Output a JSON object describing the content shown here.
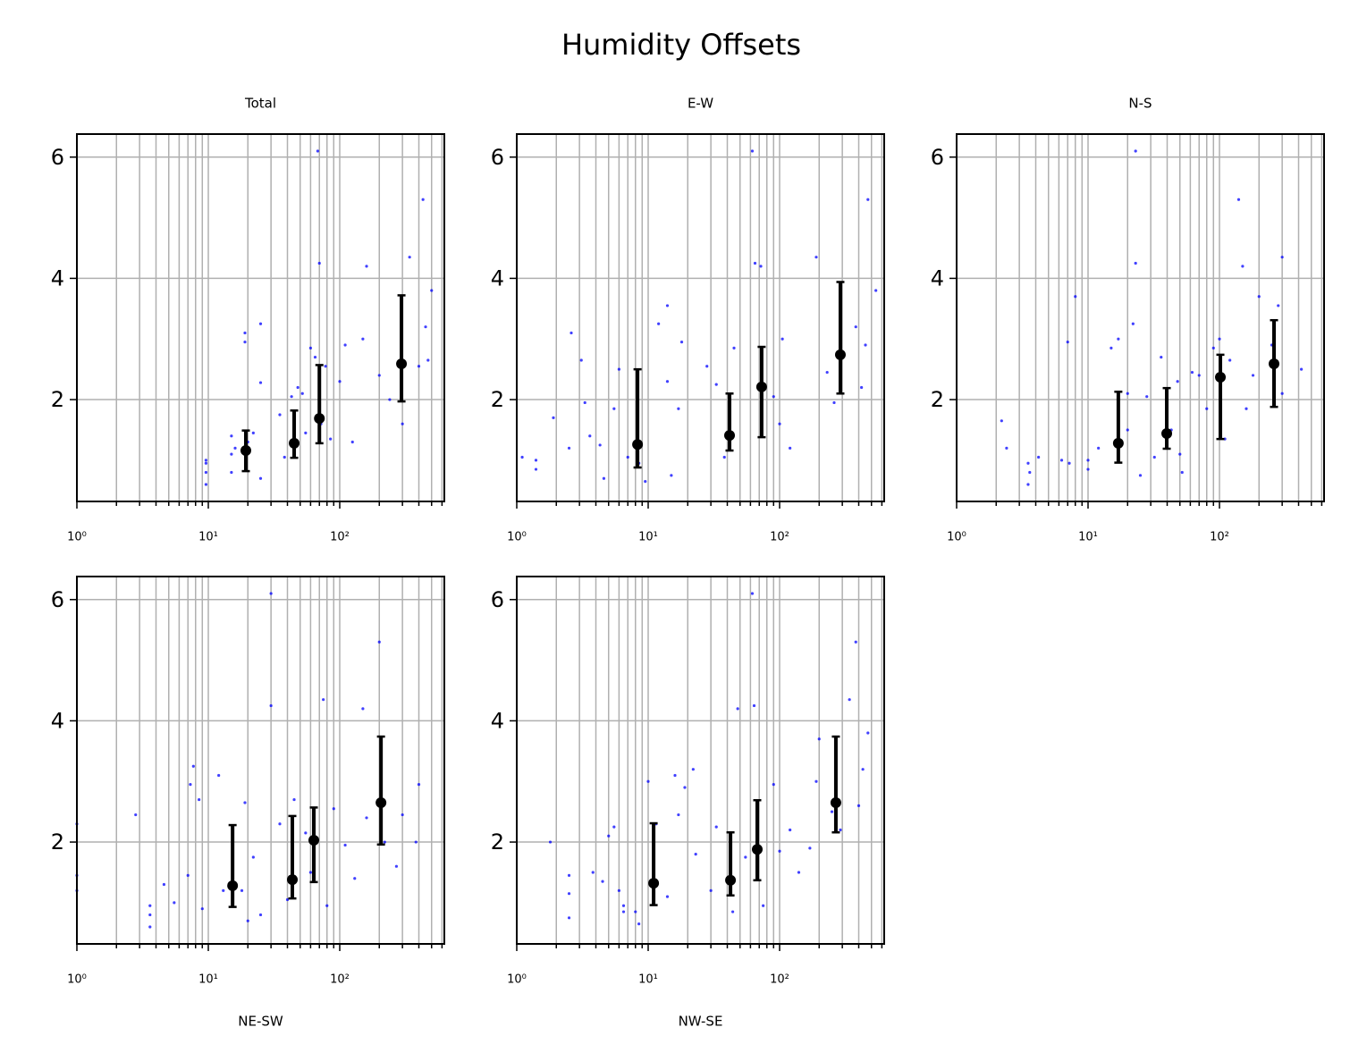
{
  "title": "Humidity Offsets",
  "chart_data": [
    {
      "type": "scatter",
      "title": "Total",
      "xscale": "log",
      "grid": true,
      "xlim": [
        1,
        625
      ],
      "xticks": [
        {
          "value": 1,
          "label": "10⁰"
        },
        {
          "value": 10,
          "label": "10¹"
        },
        {
          "value": 100,
          "label": "10²"
        }
      ],
      "xminorticks": [
        2,
        3,
        4,
        5,
        6,
        7,
        8,
        9,
        20,
        30,
        40,
        50,
        60,
        70,
        80,
        90,
        200,
        300,
        400,
        500,
        600
      ],
      "ylim": [
        0.32,
        6.38
      ],
      "yticks": [
        2,
        4,
        6
      ],
      "series": [
        {
          "color": "#0000ff",
          "x": [
            9.6,
            9.6,
            9.6,
            9.6,
            15,
            15,
            15,
            16,
            19,
            19,
            20,
            22,
            25,
            25,
            25,
            35,
            38,
            43,
            45,
            48,
            52,
            55,
            60,
            65,
            68,
            70,
            72,
            78,
            85,
            100,
            110,
            125,
            150,
            160,
            200,
            240,
            300,
            340,
            400,
            430,
            450,
            500,
            470
          ],
          "values": [
            0.6,
            0.8,
            0.95,
            1.0,
            0.8,
            1.1,
            1.4,
            1.2,
            3.1,
            2.95,
            1.3,
            1.45,
            3.25,
            2.28,
            0.7,
            1.75,
            1.05,
            2.05,
            1.6,
            2.2,
            2.1,
            1.45,
            2.85,
            2.7,
            6.1,
            4.25,
            1.6,
            2.55,
            1.35,
            2.3,
            2.9,
            1.3,
            3.0,
            4.2,
            2.4,
            2.0,
            1.6,
            4.35,
            2.55,
            5.3,
            3.2,
            3.8,
            2.65
          ]
        },
        {
          "color": "#000000",
          "x": [
            19.3,
            45,
            70,
            295
          ],
          "values": [
            1.16,
            1.28,
            1.69,
            2.59
          ],
          "error_low": [
            0.34,
            0.24,
            0.41,
            0.62
          ],
          "error_high": [
            0.33,
            0.54,
            0.88,
            1.13
          ]
        }
      ]
    },
    {
      "type": "scatter",
      "title": "E-W",
      "xscale": "log",
      "grid": true,
      "xlim": [
        1,
        625
      ],
      "xticks": [
        {
          "value": 1,
          "label": "10⁰"
        },
        {
          "value": 10,
          "label": "10¹"
        },
        {
          "value": 100,
          "label": "10²"
        }
      ],
      "xminorticks": [
        2,
        3,
        4,
        5,
        6,
        7,
        8,
        9,
        20,
        30,
        40,
        50,
        60,
        70,
        80,
        90,
        200,
        300,
        400,
        500,
        600
      ],
      "ylim": [
        0.32,
        6.38
      ],
      "yticks": [
        2,
        4,
        6
      ],
      "series": [
        {
          "color": "#0000ff",
          "x": [
            1.1,
            1.4,
            1.4,
            1.9,
            2.5,
            2.6,
            3.1,
            3.3,
            3.6,
            4.3,
            4.6,
            5.5,
            6,
            7,
            8.5,
            9.5,
            12,
            14,
            14,
            15,
            18,
            17,
            28,
            33,
            38,
            42,
            45,
            62,
            65,
            72,
            90,
            100,
            105,
            120,
            190,
            230,
            260,
            380,
            420,
            450,
            470,
            540
          ],
          "values": [
            1.05,
            1.0,
            0.85,
            1.7,
            1.2,
            3.1,
            2.65,
            1.95,
            1.4,
            1.25,
            0.7,
            1.85,
            2.5,
            1.05,
            0.95,
            0.65,
            3.25,
            3.55,
            2.3,
            0.75,
            2.95,
            1.85,
            2.55,
            2.25,
            1.05,
            1.4,
            2.85,
            6.1,
            4.25,
            4.2,
            2.05,
            1.6,
            3.0,
            1.2,
            4.35,
            2.45,
            1.95,
            3.2,
            2.2,
            2.9,
            5.3,
            3.8
          ]
        },
        {
          "color": "#000000",
          "x": [
            8.3,
            41.6,
            73,
            290
          ],
          "values": [
            1.26,
            1.41,
            2.21,
            2.74
          ],
          "error_low": [
            0.38,
            0.25,
            0.83,
            0.64
          ],
          "error_high": [
            1.24,
            0.69,
            0.66,
            1.2
          ]
        }
      ]
    },
    {
      "type": "scatter",
      "title": "N-S",
      "xscale": "log",
      "grid": true,
      "xlim": [
        1,
        625
      ],
      "xticks": [
        {
          "value": 1,
          "label": "10⁰"
        },
        {
          "value": 10,
          "label": "10¹"
        },
        {
          "value": 100,
          "label": "10²"
        }
      ],
      "xminorticks": [
        2,
        3,
        4,
        5,
        6,
        7,
        8,
        9,
        20,
        30,
        40,
        50,
        60,
        70,
        80,
        90,
        200,
        300,
        400,
        500,
        600
      ],
      "ylim": [
        0.32,
        6.38
      ],
      "yticks": [
        2,
        4,
        6
      ],
      "series": [
        {
          "color": "#0000ff",
          "x": [
            2.2,
            2.4,
            3.5,
            3.5,
            3.6,
            4.2,
            6.3,
            7.0,
            7.2,
            8,
            10,
            10,
            12,
            15,
            17,
            20,
            20,
            22,
            23,
            23,
            25,
            28,
            32,
            36,
            43,
            48,
            50,
            52,
            62,
            70,
            80,
            90,
            100,
            110,
            120,
            140,
            150,
            160,
            180,
            200,
            250,
            280,
            300,
            300,
            420
          ],
          "values": [
            1.65,
            1.2,
            0.95,
            0.6,
            0.8,
            1.05,
            1.0,
            2.95,
            0.95,
            3.7,
            1.0,
            0.85,
            1.2,
            2.85,
            3.0,
            1.5,
            2.1,
            3.25,
            6.1,
            4.25,
            0.75,
            2.05,
            1.05,
            2.7,
            1.5,
            2.3,
            1.1,
            0.8,
            2.45,
            2.4,
            1.85,
            2.85,
            3.0,
            1.35,
            2.65,
            5.3,
            4.2,
            1.85,
            2.4,
            3.7,
            2.9,
            3.55,
            4.35,
            2.1,
            2.5
          ]
        },
        {
          "color": "#000000",
          "x": [
            17,
            39.7,
            101.6,
            260
          ],
          "values": [
            1.28,
            1.44,
            2.37,
            2.59
          ],
          "error_low": [
            0.32,
            0.25,
            1.02,
            0.71
          ],
          "error_high": [
            0.85,
            0.75,
            0.37,
            0.72
          ]
        }
      ]
    },
    {
      "type": "scatter",
      "xlabel": "NE-SW",
      "xscale": "log",
      "grid": true,
      "xlim": [
        1,
        625
      ],
      "xticks": [
        {
          "value": 1,
          "label": "10⁰"
        },
        {
          "value": 10,
          "label": "10¹"
        },
        {
          "value": 100,
          "label": "10²"
        }
      ],
      "xminorticks": [
        2,
        3,
        4,
        5,
        6,
        7,
        8,
        9,
        20,
        30,
        40,
        50,
        60,
        70,
        80,
        90,
        200,
        300,
        400,
        500,
        600
      ],
      "ylim": [
        0.32,
        6.38
      ],
      "yticks": [
        2,
        4,
        6
      ],
      "series": [
        {
          "color": "#0000ff",
          "x": [
            1,
            1,
            1,
            2.8,
            3.6,
            3.6,
            3.6,
            4.6,
            5.5,
            7,
            7.3,
            7.7,
            8.5,
            9,
            12,
            13,
            18,
            19,
            20,
            22,
            25,
            30,
            30,
            35,
            40,
            45,
            55,
            60,
            75,
            80,
            90,
            110,
            130,
            150,
            160,
            200,
            220,
            270,
            300,
            380,
            400
          ],
          "values": [
            1.2,
            1.45,
            2.3,
            2.45,
            0.6,
            0.8,
            0.95,
            1.3,
            1.0,
            1.45,
            2.95,
            3.25,
            2.7,
            0.9,
            3.1,
            1.2,
            1.2,
            2.65,
            0.7,
            1.75,
            0.8,
            6.1,
            4.25,
            2.3,
            1.05,
            2.7,
            2.15,
            1.5,
            4.35,
            0.95,
            2.55,
            1.95,
            1.4,
            4.2,
            2.4,
            5.3,
            2.0,
            1.6,
            2.45,
            2.0,
            2.95
          ]
        },
        {
          "color": "#000000",
          "x": [
            15.3,
            43.6,
            63.5,
            206
          ],
          "values": [
            1.28,
            1.38,
            2.03,
            2.65
          ],
          "error_low": [
            0.35,
            0.31,
            0.69,
            0.69
          ],
          "error_high": [
            1.0,
            1.05,
            0.54,
            1.09
          ]
        }
      ]
    },
    {
      "type": "scatter",
      "xlabel": "NW-SE",
      "xscale": "log",
      "grid": true,
      "xlim": [
        1,
        625
      ],
      "xticks": [
        {
          "value": 1,
          "label": "10⁰"
        },
        {
          "value": 10,
          "label": "10¹"
        },
        {
          "value": 100,
          "label": "10²"
        }
      ],
      "xminorticks": [
        2,
        3,
        4,
        5,
        6,
        7,
        8,
        9,
        20,
        30,
        40,
        50,
        60,
        70,
        80,
        90,
        200,
        300,
        400,
        500,
        600
      ],
      "ylim": [
        0.32,
        6.38
      ],
      "yticks": [
        2,
        4,
        6
      ],
      "series": [
        {
          "color": "#0000ff",
          "x": [
            1.8,
            2.5,
            2.5,
            2.5,
            3.8,
            4.5,
            5,
            5.5,
            6,
            6.5,
            6.5,
            8,
            8.5,
            10,
            11.5,
            14,
            16,
            17,
            19,
            22,
            23,
            30,
            33,
            44,
            48,
            55,
            62,
            64,
            75,
            90,
            100,
            120,
            140,
            170,
            190,
            200,
            250,
            290,
            340,
            380,
            430,
            470,
            400
          ],
          "values": [
            2.0,
            1.45,
            1.15,
            0.75,
            1.5,
            1.35,
            2.1,
            2.25,
            1.2,
            0.85,
            0.95,
            0.85,
            0.65,
            3.0,
            2.3,
            1.1,
            3.1,
            2.45,
            2.9,
            3.2,
            1.8,
            1.2,
            2.25,
            0.85,
            4.2,
            1.75,
            6.1,
            4.25,
            0.95,
            2.95,
            1.85,
            2.2,
            1.5,
            1.9,
            3.0,
            3.7,
            2.5,
            2.2,
            4.35,
            5.3,
            3.2,
            3.8,
            2.6
          ]
        },
        {
          "color": "#000000",
          "x": [
            11,
            42.3,
            67.6,
            268
          ],
          "values": [
            1.32,
            1.37,
            1.88,
            2.65
          ],
          "error_low": [
            0.36,
            0.25,
            0.51,
            0.49
          ],
          "error_high": [
            0.99,
            0.79,
            0.81,
            1.09
          ]
        }
      ]
    }
  ]
}
